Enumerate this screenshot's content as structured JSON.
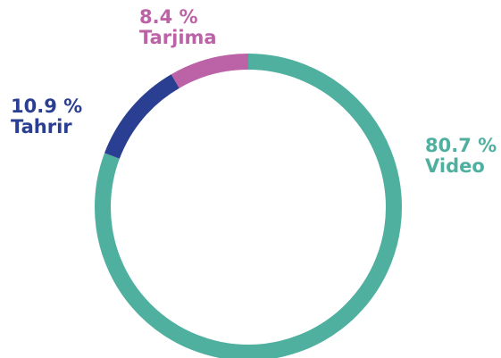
{
  "chart_data": {
    "type": "pie",
    "variant": "donut",
    "title": "",
    "start": "top",
    "direction": "clockwise",
    "legend": "none",
    "slices": [
      {
        "label": "Video",
        "value": 80.7,
        "value_label": "80.7 %",
        "color": "#4fb0a0"
      },
      {
        "label": "Tahrir",
        "value": 10.9,
        "value_label": "10.9 %",
        "color": "#2a3f91"
      },
      {
        "label": "Tarjima",
        "value": 8.4,
        "value_label": "8.4 %",
        "color": "#bb63a6"
      }
    ]
  }
}
